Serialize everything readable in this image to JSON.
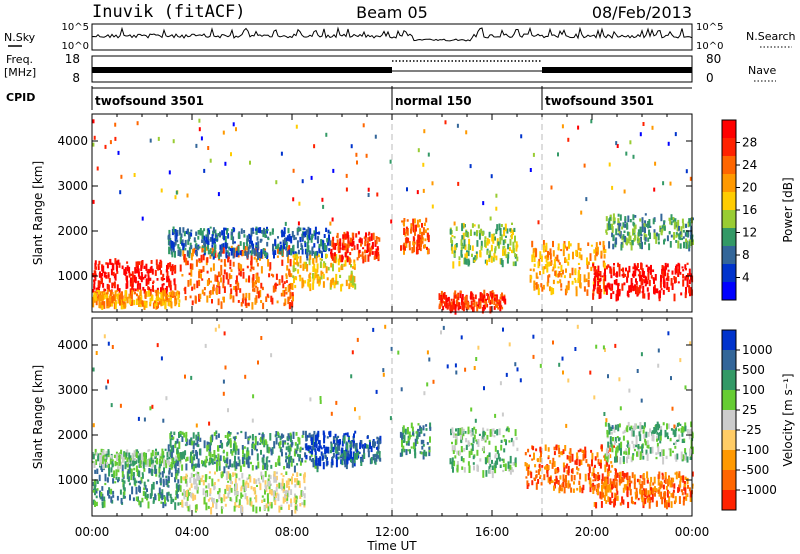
{
  "header": {
    "station": "Inuvik (fitACF)",
    "beam": "Beam 05",
    "date": "08/Feb/2013"
  },
  "top_panels": {
    "nsky_label": "N.Sky",
    "nsearch_label": "N.Search",
    "noise_ticks_left": [
      "10^5",
      "10^0"
    ],
    "noise_ticks_right": [
      "10^5",
      "10^0"
    ],
    "freq_label_line1": "Freq.",
    "freq_label_line2": "[MHz]",
    "freq_ticks": [
      "18",
      "8"
    ],
    "nave_label": "Nave",
    "nave_ticks": [
      "80",
      "0"
    ],
    "cpid_label": "CPID",
    "cpid_segments": [
      {
        "start_hour": 0,
        "end_hour": 12,
        "label": "twofsound 3501"
      },
      {
        "start_hour": 12,
        "end_hour": 18,
        "label": "normal 150"
      },
      {
        "start_hour": 18,
        "end_hour": 24,
        "label": "twofsound 3501"
      }
    ]
  },
  "chart_data": [
    {
      "type": "heatmap",
      "panel": "power",
      "ylabel": "Slant Range [km]",
      "yticks": [
        1000,
        2000,
        3000,
        4000
      ],
      "ylim": [
        200,
        4600
      ],
      "xlim": [
        0,
        24
      ],
      "colorbar": {
        "label": "Power [dB]",
        "ticks": [
          "28",
          "24",
          "20",
          "16",
          "12",
          "8",
          "4"
        ],
        "colors": [
          "#ff0000",
          "#ff2200",
          "#ff6600",
          "#ff9900",
          "#ffcc00",
          "#99cc33",
          "#339966",
          "#336699",
          "#0033cc",
          "#0000ff"
        ]
      },
      "scatter_regions": [
        {
          "x": [
            0.0,
            3.3
          ],
          "range": [
            700,
            1400
          ],
          "color_index": 0
        },
        {
          "x": [
            0.0,
            3.5
          ],
          "range": [
            400,
            700
          ],
          "color_index": 3
        },
        {
          "x": [
            3.5,
            8.0
          ],
          "range": [
            400,
            1700
          ],
          "color_index": 2
        },
        {
          "x": [
            3.0,
            9.5
          ],
          "range": [
            1500,
            2100
          ],
          "color_index": 7
        },
        {
          "x": [
            8.0,
            10.5
          ],
          "range": [
            800,
            1500
          ],
          "color_index": 4
        },
        {
          "x": [
            9.5,
            11.5
          ],
          "range": [
            1400,
            2000
          ],
          "color_index": 1
        },
        {
          "x": [
            12.3,
            13.5
          ],
          "range": [
            1600,
            2300
          ],
          "color_index": 2
        },
        {
          "x": [
            13.8,
            16.5
          ],
          "range": [
            300,
            700
          ],
          "color_index": 1
        },
        {
          "x": [
            14.3,
            17.0
          ],
          "range": [
            1300,
            2200
          ],
          "color_index": 5
        },
        {
          "x": [
            17.5,
            20.5
          ],
          "range": [
            700,
            1800
          ],
          "color_index": 3
        },
        {
          "x": [
            20.0,
            24.0
          ],
          "range": [
            600,
            1300
          ],
          "color_index": 0
        },
        {
          "x": [
            20.5,
            24.0
          ],
          "range": [
            1700,
            2400
          ],
          "color_index": 6
        }
      ]
    },
    {
      "type": "heatmap",
      "panel": "velocity",
      "xlabel": "Time UT",
      "ylabel": "Slant Range [km]",
      "yticks": [
        1000,
        2000,
        3000,
        4000
      ],
      "ylim": [
        200,
        4600
      ],
      "xlim": [
        0,
        24
      ],
      "xticks": [
        "00:00",
        "04:00",
        "08:00",
        "12:00",
        "16:00",
        "20:00",
        "00:00"
      ],
      "colorbar": {
        "label": "Velocity [m s⁻¹]",
        "ticks": [
          "1000",
          "500",
          "100",
          "25",
          "-25",
          "-100",
          "-500",
          "-1000"
        ],
        "colors": [
          "#0033cc",
          "#336699",
          "#339966",
          "#66cc33",
          "#cccccc",
          "#ffcc66",
          "#ff9900",
          "#ff6600",
          "#ff2200"
        ]
      },
      "scatter_regions": [
        {
          "x": [
            0.0,
            3.5
          ],
          "range": [
            500,
            1400
          ],
          "color_index": 2
        },
        {
          "x": [
            0.0,
            3.5
          ],
          "range": [
            1400,
            1700
          ],
          "color_index": 3
        },
        {
          "x": [
            3.5,
            8.5
          ],
          "range": [
            400,
            1200
          ],
          "color_index": 4
        },
        {
          "x": [
            3.0,
            9.0
          ],
          "range": [
            1300,
            2100
          ],
          "color_index": 2
        },
        {
          "x": [
            8.5,
            10.5
          ],
          "range": [
            1400,
            2100
          ],
          "color_index": 0
        },
        {
          "x": [
            9.5,
            11.5
          ],
          "range": [
            1400,
            2000
          ],
          "color_index": 1
        },
        {
          "x": [
            12.3,
            13.5
          ],
          "range": [
            1600,
            2300
          ],
          "color_index": 2
        },
        {
          "x": [
            14.3,
            17.0
          ],
          "range": [
            1200,
            2200
          ],
          "color_index": 3
        },
        {
          "x": [
            17.3,
            21.0
          ],
          "range": [
            800,
            1800
          ],
          "color_index": 7
        },
        {
          "x": [
            20.0,
            24.0
          ],
          "range": [
            500,
            1200
          ],
          "color_index": 7
        },
        {
          "x": [
            20.5,
            24.0
          ],
          "range": [
            1500,
            2300
          ],
          "color_index": 3
        }
      ]
    }
  ]
}
